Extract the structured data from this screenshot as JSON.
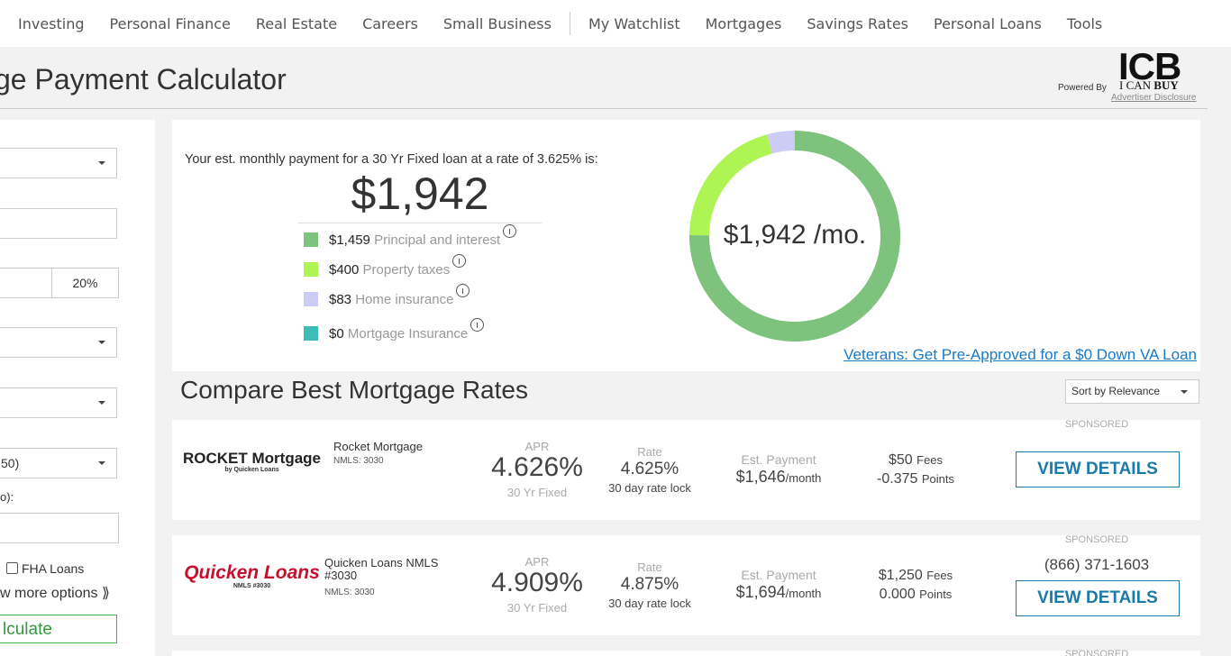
{
  "nav": {
    "items": [
      "Investing",
      "Personal Finance",
      "Real Estate",
      "Careers",
      "Small Business",
      "My Watchlist",
      "Mortgages",
      "Savings Rates",
      "Personal Loans",
      "Tools"
    ]
  },
  "header": {
    "title": "ge Payment Calculator",
    "powered_by": "Powered By",
    "logo": "ICB",
    "logo_sub_1": "I CAN",
    "logo_sub_2": "BUY",
    "disclosure": "Advertiser Disclosure"
  },
  "form": {
    "down_percent": "20%",
    "credit": "50)",
    "label_fragment": "o):",
    "fha": "FHA Loans",
    "more": "w more options ⟫",
    "calculate": "lculate"
  },
  "payment": {
    "intro": "Your est. monthly payment for a 30 Yr Fixed loan at a rate of 3.625% is:",
    "total": "$1,942",
    "center_label": "$1,942 /mo.",
    "items": [
      {
        "amount": "$1,459",
        "label": "Principal and interest",
        "value": 1459,
        "color": "#7dc27d"
      },
      {
        "amount": "$400",
        "label": "Property taxes",
        "value": 400,
        "color": "#aef553"
      },
      {
        "amount": "$83",
        "label": "Home insurance",
        "value": 83,
        "color": "#ccccf5"
      },
      {
        "amount": "$0",
        "label": "Mortgage Insurance",
        "value": 0,
        "color": "#3dbdb9"
      }
    ],
    "va_link": "Veterans: Get Pre-Approved for a $0 Down VA Loan"
  },
  "rates": {
    "title": "Compare Best Mortgage Rates",
    "sort": "Sort by Relevance",
    "labels": {
      "apr": "APR",
      "rate": "Rate",
      "est_payment": "Est. Payment",
      "fees": "Fees",
      "points": "Points",
      "sponsored": "SPONSORED",
      "view": "VIEW DETAILS",
      "per_month": "/month"
    },
    "lenders": [
      {
        "logo": "ROCKET Mortgage",
        "logo_sub": "by Quicken Loans",
        "name": "Rocket Mortgage",
        "nmls": "NMLS: 3030",
        "apr": "4.626%",
        "term": "30 Yr Fixed",
        "rate": "4.625%",
        "lock": "30 day rate lock",
        "payment": "$1,646",
        "fees": "$50",
        "points": "-0.375"
      },
      {
        "logo": "Quicken Loans",
        "logo_sub": "NMLS #3030",
        "name": "Quicken Loans NMLS #3030",
        "nmls": "NMLS: 3030",
        "phone": "(866) 371-1603",
        "apr": "4.909%",
        "term": "30 Yr Fixed",
        "rate": "4.875%",
        "lock": "30 day rate lock",
        "payment": "$1,694",
        "fees": "$1,250",
        "points": "0.000"
      }
    ]
  }
}
